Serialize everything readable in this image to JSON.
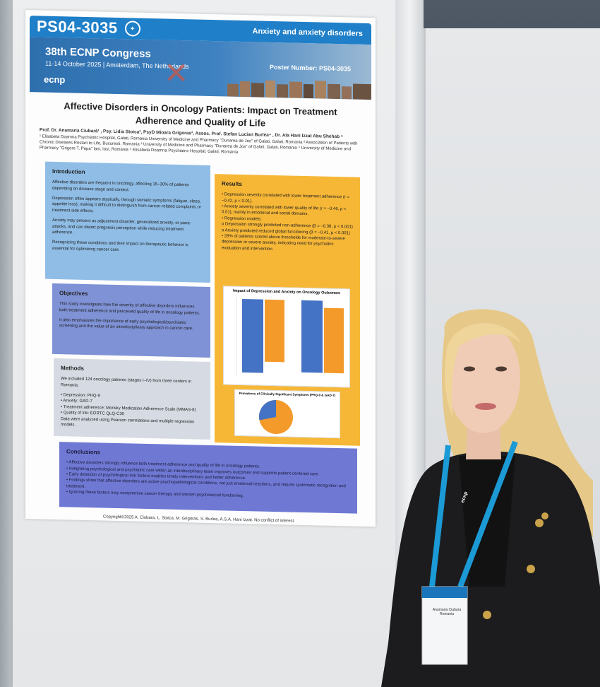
{
  "poster": {
    "code": "PS04-3035",
    "topic": "Anxiety and anxiety disorders",
    "congress_title": "38th ECNP Congress",
    "congress_dates": "11-14 October 2025 | Amsterdam, The Netherlands",
    "poster_number": "Poster Number: PS04-3035",
    "logo": "ecnp",
    "title": "Affective Disorders in Oncology Patients: Impact on Treatment Adherence and Quality of Life",
    "authors": "Prof. Dr. Anamaria Ciubară¹ , Psy. Lidia Stoica², PsyD Mioara Grigoras³, Assoc. Prof. Stefan Lucian Burlea⁴ , Dr. Ala Hani Izzat Abu Shehab ⁵",
    "affiliations": "¹ Elisabeta Doamna Psychiatric Hospital, Galati, Romania University of Medicine and Pharmacy \"Dunarea de Jos\" of Galati, Galati, Romania ² Association of Patients with Chronic Diseases Restart to Life, Bucuresti, Romania ³ University of Medicine and Pharmacy \"Dunarea de Jos\" of Galati, Galati, Romania ⁴ University of Medicine and Pharmacy \"Grigore T. Popa\" Iasi, Iasi, Romania ⁵ Elisabeta Doamna Psychiatric Hospital, Galati, Romania",
    "introduction": {
      "heading": "Introduction",
      "p1": "Affective disorders are frequent in oncology, affecting 15–30% of patients depending on disease stage and context.",
      "p2": "Depression often appears atypically, through somatic symptoms (fatigue, sleep, appetite loss), making it difficult to distinguish from cancer-related complaints or treatment side effects.",
      "p3": "Anxiety may present as adjustment disorder, generalized anxiety, or panic attacks, and can distort prognosis perception while reducing treatment adherence.",
      "p4": "Recognizing these conditions and their impact on therapeutic behavior is essential for optimizing cancer care."
    },
    "objectives": {
      "heading": "Objectives",
      "p1": "This study investigates how the severity of affective disorders influences both treatment adherence and perceived quality of life in oncology patients.",
      "p2": "It also emphasizes the importance of early psychological/psychiatric screening and the value of an interdisciplinary approach in cancer care."
    },
    "methods": {
      "heading": "Methods",
      "p1": "We included 124 oncology patients (stages I–IV) from three centers in Romania.",
      "l1": "• Depression: PHQ-9",
      "l2": "• Anxiety: GAD-7",
      "l3": "• Treatment adherence: Morisky Medication Adherence Scale (MMAS-8)",
      "l4": "• Quality of life: EORTC QLQ-C30",
      "p2": "Data were analyzed using Pearson correlations and multiple regression models."
    },
    "results": {
      "heading": "Results",
      "l1": "• Depression severity correlated with lower treatment adherence (r = –0.42, p < 0.01).",
      "l2": "• Anxiety severity correlated with lower quality of life (r = –0.46, p < 0.01), mainly in emotional and social domains.",
      "l3": "• Regression models:",
      "l4": "o Depression strongly predicted non-adherence (β = –0.38, p < 0.001)",
      "l5": "o Anxiety predicted reduced global functioning (β = –0.41, p < 0.001)",
      "l6": "• 28% of patients scored above thresholds for moderate-to-severe depression or severe anxiety, indicating need for psychiatric evaluation and intervention."
    },
    "chart1_title": "Impact of Depression and Anxiety on Oncology Outcomes",
    "chart2_title": "Prevalence of Clinically Significant Symptoms (PHQ-9 & GAD-7)",
    "conclusions": {
      "heading": "Conclusions",
      "l1": "• Affective disorders strongly influence both treatment adherence and quality of life in oncology patients.",
      "l2": "• Integrating psychological and psychiatric care within an interdisciplinary team improves outcomes and supports patient-centered care.",
      "l3": "• Early detection of psychological risk factors enables timely interventions and better adherence.",
      "l4": "• Findings show that affective disorders are active psychopathological conditions, not just emotional reactions, and require systematic recognition and treatment.",
      "l5": "• Ignoring these factors may compromise cancer therapy and worsen psychosocial functioning."
    },
    "copyright": "Copyright©2025 A. Ciubara, L. Stoica, M. Grigoras, S. Burlea, A.S.A. Hani Izzat. No conflict of interest."
  },
  "badge": {
    "lanyard_text": "ecnp",
    "name": "Anamaria Ciubara",
    "country": "Romania"
  },
  "colors": {
    "banner": "#1f7fc8",
    "intro": "#8fbde6",
    "objectives": "#7f92d6",
    "results": "#f6b737",
    "conclusions": "#6f79d4",
    "bar_blue": "#4472c4",
    "bar_orange": "#f39a2b",
    "lanyard": "#1b9ad6"
  }
}
